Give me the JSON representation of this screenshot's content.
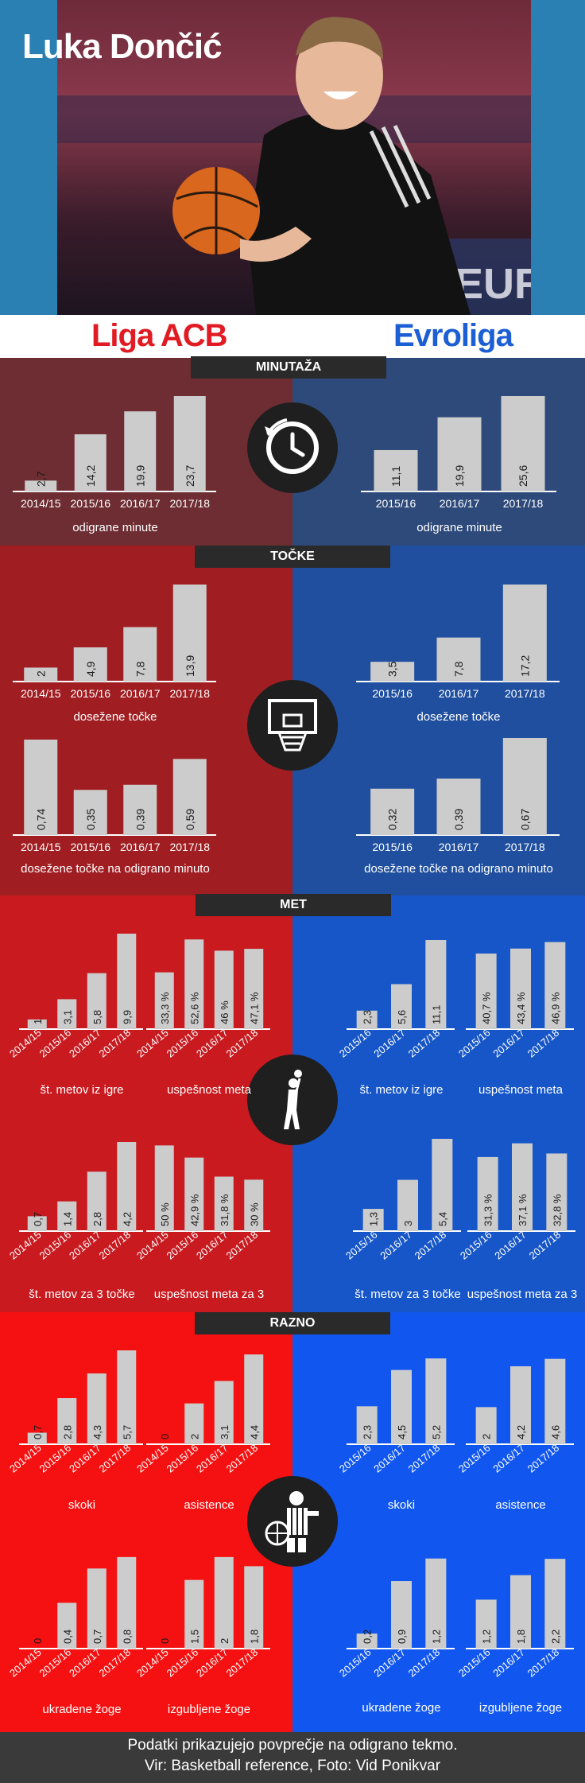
{
  "title": "Luka Dončić",
  "leagues": {
    "left": "Liga ACB",
    "right": "Evroliga"
  },
  "sections": {
    "minutaza": "MINUTAŽA",
    "tocke": "TOČKE",
    "met": "MET",
    "razno": "RAZNO"
  },
  "footer": {
    "line1": "Podatki prikazujejo povprečje na odigrano tekmo.",
    "line2": "Vir: Basketball reference, Foto: Vid Ponikvar"
  },
  "colors": {
    "acb_min": "#6e2d33",
    "euro_min": "#2d4a7a",
    "acb_pts": "#a01e22",
    "euro_pts": "#1f4f9e",
    "acb_met": "#c81a1f",
    "euro_met": "#1656c8",
    "acb_razno": "#f51111",
    "euro_razno": "#1157ef",
    "bar": "#cccccc"
  },
  "icons": {
    "minutaza": "clock-icon",
    "tocke": "basketball-hoop-icon",
    "met": "shooter-icon",
    "razno": "referee-icon"
  },
  "chart_data": [
    {
      "id": "acb_minutes",
      "type": "bar",
      "categories": [
        "2014/15",
        "2015/16",
        "2016/17",
        "2017/18"
      ],
      "values": [
        2.7,
        14.2,
        19.9,
        23.7
      ],
      "labels": [
        "2,7",
        "14,2",
        "19,9",
        "23,7"
      ],
      "xlabel": "odigrane minute"
    },
    {
      "id": "euro_minutes",
      "type": "bar",
      "categories": [
        "2015/16",
        "2016/17",
        "2017/18"
      ],
      "values": [
        11.1,
        19.9,
        25.6
      ],
      "labels": [
        "11,1",
        "19,9",
        "25,6"
      ],
      "xlabel": "odigrane minute"
    },
    {
      "id": "acb_points",
      "type": "bar",
      "categories": [
        "2014/15",
        "2015/16",
        "2016/17",
        "2017/18"
      ],
      "values": [
        2,
        4.9,
        7.8,
        13.9
      ],
      "labels": [
        "2",
        "4,9",
        "7,8",
        "13,9"
      ],
      "xlabel": "dosežene točke"
    },
    {
      "id": "euro_points",
      "type": "bar",
      "categories": [
        "2015/16",
        "2016/17",
        "2017/18"
      ],
      "values": [
        3.5,
        7.8,
        17.2
      ],
      "labels": [
        "3,5",
        "7,8",
        "17,2"
      ],
      "xlabel": "dosežene točke"
    },
    {
      "id": "acb_ppm",
      "type": "bar",
      "categories": [
        "2014/15",
        "2015/16",
        "2016/17",
        "2017/18"
      ],
      "values": [
        0.74,
        0.35,
        0.39,
        0.59
      ],
      "labels": [
        "0,74",
        "0,35",
        "0,39",
        "0,59"
      ],
      "xlabel": "dosežene točke na odigrano minuto"
    },
    {
      "id": "euro_ppm",
      "type": "bar",
      "categories": [
        "2015/16",
        "2016/17",
        "2017/18"
      ],
      "values": [
        0.32,
        0.39,
        0.67
      ],
      "labels": [
        "0,32",
        "0,39",
        "0,67"
      ],
      "xlabel": "dosežene točke na odigrano minuto"
    },
    {
      "id": "acb_fga",
      "type": "bar",
      "categories": [
        "2014/15",
        "2015/16",
        "2016/17",
        "2017/18"
      ],
      "values": [
        1,
        3.1,
        5.8,
        9.9
      ],
      "labels": [
        "1",
        "3,1",
        "5,8",
        "9,9"
      ],
      "xlabel": "št. metov iz igre"
    },
    {
      "id": "acb_fgp",
      "type": "bar",
      "categories": [
        "2014/15",
        "2015/16",
        "2016/17",
        "2017/18"
      ],
      "values": [
        33.3,
        52.6,
        46,
        47.1
      ],
      "labels": [
        "33,3 %",
        "52,6 %",
        "46 %",
        "47,1 %"
      ],
      "xlabel": "uspešnost meta"
    },
    {
      "id": "euro_fga",
      "type": "bar",
      "categories": [
        "2015/16",
        "2016/17",
        "2017/18"
      ],
      "values": [
        2.3,
        5.6,
        11.1
      ],
      "labels": [
        "2,3",
        "5,6",
        "11,1"
      ],
      "xlabel": "št. metov iz igre"
    },
    {
      "id": "euro_fgp",
      "type": "bar",
      "categories": [
        "2015/16",
        "2016/17",
        "2017/18"
      ],
      "values": [
        40.7,
        43.4,
        46.9
      ],
      "labels": [
        "40,7 %",
        "43,4 %",
        "46,9 %"
      ],
      "xlabel": "uspešnost meta"
    },
    {
      "id": "acb_3pa",
      "type": "bar",
      "categories": [
        "2014/15",
        "2015/16",
        "2016/17",
        "2017/18"
      ],
      "values": [
        0.7,
        1.4,
        2.8,
        4.2
      ],
      "labels": [
        "0,7",
        "1,4",
        "2,8",
        "4,2"
      ],
      "xlabel": "št. metov za 3 točke"
    },
    {
      "id": "acb_3pp",
      "type": "bar",
      "categories": [
        "2014/15",
        "2015/16",
        "2016/17",
        "2017/18"
      ],
      "values": [
        50,
        42.9,
        31.8,
        30
      ],
      "labels": [
        "50 %",
        "42,9 %",
        "31,8 %",
        "30 %"
      ],
      "xlabel": "uspešnost meta za 3"
    },
    {
      "id": "euro_3pa",
      "type": "bar",
      "categories": [
        "2015/16",
        "2016/17",
        "2017/18"
      ],
      "values": [
        1.3,
        3,
        5.4
      ],
      "labels": [
        "1,3",
        "3",
        "5,4"
      ],
      "xlabel": "št. metov za 3 točke"
    },
    {
      "id": "euro_3pp",
      "type": "bar",
      "categories": [
        "2015/16",
        "2016/17",
        "2017/18"
      ],
      "values": [
        31.3,
        37.1,
        32.8
      ],
      "labels": [
        "31,3 %",
        "37,1 %",
        "32,8 %"
      ],
      "xlabel": "uspešnost meta za 3"
    },
    {
      "id": "acb_reb",
      "type": "bar",
      "categories": [
        "2014/15",
        "2015/16",
        "2016/17",
        "2017/18"
      ],
      "values": [
        0.7,
        2.8,
        4.3,
        5.7
      ],
      "labels": [
        "0,7",
        "2,8",
        "4,3",
        "5,7"
      ],
      "xlabel": "skoki"
    },
    {
      "id": "acb_ast",
      "type": "bar",
      "categories": [
        "2014/15",
        "2015/16",
        "2016/17",
        "2017/18"
      ],
      "values": [
        0,
        2,
        3.1,
        4.4
      ],
      "labels": [
        "0",
        "2",
        "3,1",
        "4,4"
      ],
      "xlabel": "asistence"
    },
    {
      "id": "euro_reb",
      "type": "bar",
      "categories": [
        "2015/16",
        "2016/17",
        "2017/18"
      ],
      "values": [
        2.3,
        4.5,
        5.2
      ],
      "labels": [
        "2,3",
        "4,5",
        "5,2"
      ],
      "xlabel": "skoki"
    },
    {
      "id": "euro_ast",
      "type": "bar",
      "categories": [
        "2015/16",
        "2016/17",
        "2017/18"
      ],
      "values": [
        2,
        4.2,
        4.6
      ],
      "labels": [
        "2",
        "4,2",
        "4,6"
      ],
      "xlabel": "asistence"
    },
    {
      "id": "acb_stl",
      "type": "bar",
      "categories": [
        "2014/15",
        "2015/16",
        "2016/17",
        "2017/18"
      ],
      "values": [
        0,
        0.4,
        0.7,
        0.8
      ],
      "labels": [
        "0",
        "0,4",
        "0,7",
        "0,8"
      ],
      "xlabel": "ukradene žoge"
    },
    {
      "id": "acb_tov",
      "type": "bar",
      "categories": [
        "2014/15",
        "2015/16",
        "2016/17",
        "2017/18"
      ],
      "values": [
        0,
        1.5,
        2,
        1.8
      ],
      "labels": [
        "0",
        "1,5",
        "2",
        "1,8"
      ],
      "xlabel": "izgubljene žoge"
    },
    {
      "id": "euro_stl",
      "type": "bar",
      "categories": [
        "2015/16",
        "2016/17",
        "2017/18"
      ],
      "values": [
        0.2,
        0.9,
        1.2
      ],
      "labels": [
        "0,2",
        "0,9",
        "1,2"
      ],
      "xlabel": "ukradene žoge"
    },
    {
      "id": "euro_tov",
      "type": "bar",
      "categories": [
        "2015/16",
        "2016/17",
        "2017/18"
      ],
      "values": [
        1.2,
        1.8,
        2.2
      ],
      "labels": [
        "1,2",
        "1,8",
        "2,2"
      ],
      "xlabel": "izgubljene žoge"
    }
  ]
}
